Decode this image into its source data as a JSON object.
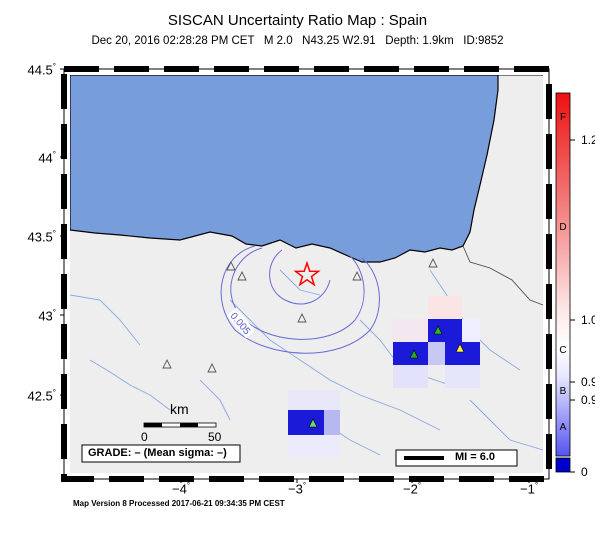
{
  "map": {
    "title": "SISCAN Uncertainty Ratio Map : Spain",
    "subtitle": "Dec 20, 2016 02:28:28 PM CET   M 2.0   N43.25 W2.91   Depth: 1.9km   ID:9852",
    "footer": "Map Version 8 Processed 2017-06-21 09:34:35 PM CEST",
    "lat_labels": [
      "44.5",
      "44",
      "43.5",
      "43",
      "42.5"
    ],
    "lon_labels": [
      "−4",
      "−3",
      "−2",
      "−1"
    ],
    "deg": "°",
    "scalebar": {
      "unit": "km",
      "min": "0",
      "max": "50"
    },
    "grade_label": "GRADE: – (Mean sigma: –)",
    "mi_label": "MI = 6.0",
    "contour_label": "0.005",
    "epicenter": {
      "lat": 43.25,
      "lon": -2.91
    },
    "colors": {
      "sea": "#789ddb",
      "land": "#eeeeee",
      "epicenter": "#ff0000",
      "contour": "#6a6ad8"
    }
  },
  "colorbar": {
    "letters": [
      "F",
      "D",
      "C",
      "B",
      "A"
    ],
    "values": [
      "1.2",
      "1.0",
      "0.9",
      "0.9",
      "0"
    ]
  }
}
